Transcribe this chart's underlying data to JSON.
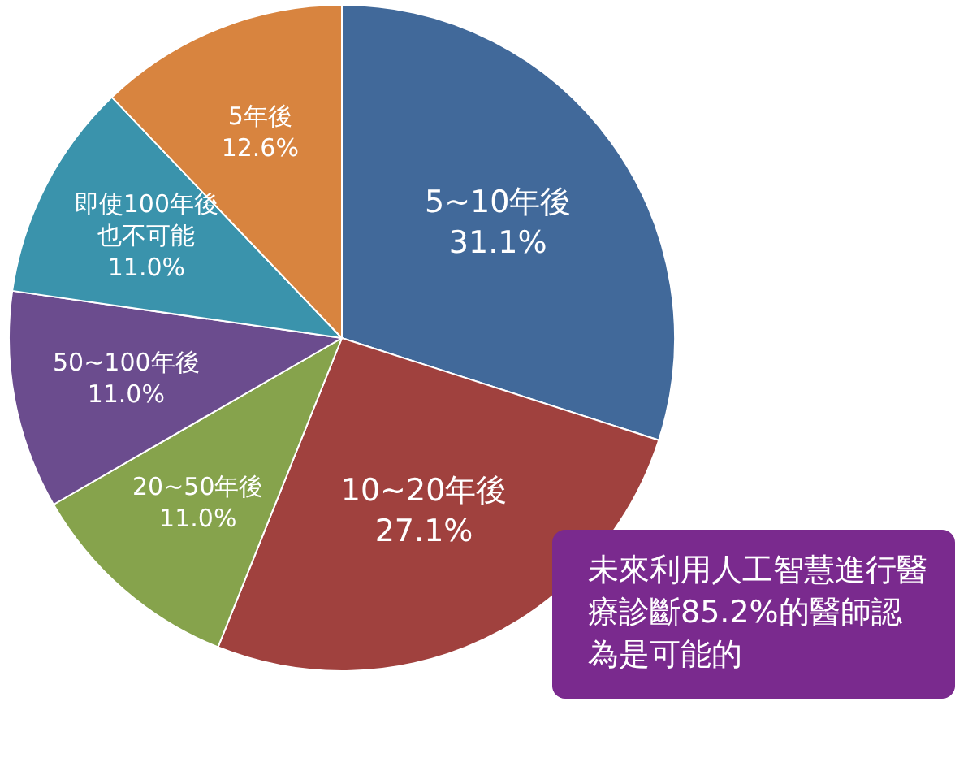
{
  "chart_data": {
    "type": "pie",
    "categories": [
      "5~10年後",
      "10~20年後",
      "20~50年後",
      "50~100年後",
      "即使100年後也不可能",
      "5年後"
    ],
    "values": [
      31.1,
      27.1,
      11.0,
      11.0,
      11.0,
      12.6
    ],
    "value_labels": [
      "31.1%",
      "27.1%",
      "11.0%",
      "11.0%",
      "11.0%",
      "12.6%"
    ],
    "colors": [
      "#41699a",
      "#a0413e",
      "#86a34c",
      "#6b4c8e",
      "#3a93ac",
      "#d8843f"
    ],
    "legend": false,
    "annotations": [
      "未來利用人工智慧進行醫療診斷85.2%的醫師認為是可能的"
    ]
  }
}
